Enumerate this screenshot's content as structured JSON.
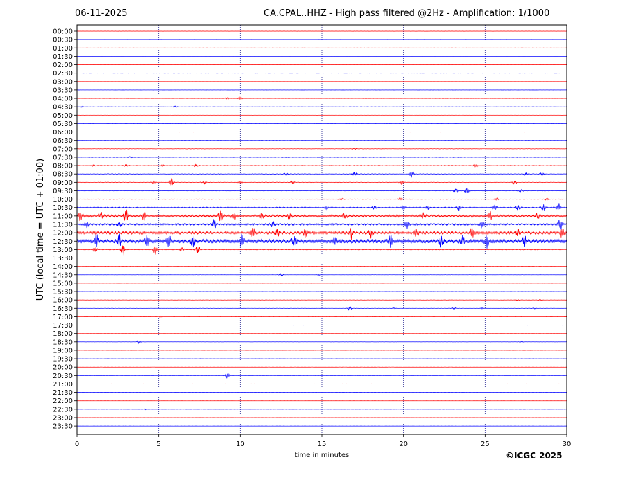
{
  "header": {
    "date": "06-11-2025",
    "title": "CA.CPAL..HHZ - High pass filtered @2Hz - Amplification: 1/1000"
  },
  "footer": {
    "copyright": "©ICGC 2025"
  },
  "chart_data": {
    "type": "line",
    "title": "CA.CPAL..HHZ - High pass filtered @2Hz - Amplification: 1/1000",
    "xlabel": "time in minutes",
    "ylabel": "UTC (local time = UTC + 01:00)",
    "xlim": [
      0,
      30
    ],
    "x_ticks": [
      0,
      5,
      10,
      15,
      20,
      25,
      30
    ],
    "grid": "vertical dotted at 5, 10, 15, 20, 25",
    "trace_colors": [
      "#ff0000",
      "#0000ff"
    ],
    "series": [
      {
        "label": "00:00",
        "amp": 0.02,
        "events": []
      },
      {
        "label": "00:30",
        "amp": 0.02,
        "events": []
      },
      {
        "label": "01:00",
        "amp": 0.02,
        "events": []
      },
      {
        "label": "01:30",
        "amp": 0.02,
        "events": []
      },
      {
        "label": "02:00",
        "amp": 0.02,
        "events": []
      },
      {
        "label": "02:30",
        "amp": 0.02,
        "events": []
      },
      {
        "label": "03:00",
        "amp": 0.02,
        "events": []
      },
      {
        "label": "03:30",
        "amp": 0.02,
        "events": []
      },
      {
        "label": "04:00",
        "amp": 0.03,
        "events": [
          [
            9.2,
            0.2
          ],
          [
            10.0,
            0.3
          ]
        ]
      },
      {
        "label": "04:30",
        "amp": 0.03,
        "events": [
          [
            0.3,
            0.15
          ],
          [
            6.0,
            0.15
          ]
        ]
      },
      {
        "label": "05:00",
        "amp": 0.02,
        "events": []
      },
      {
        "label": "05:30",
        "amp": 0.02,
        "events": []
      },
      {
        "label": "06:00",
        "amp": 0.02,
        "events": []
      },
      {
        "label": "06:30",
        "amp": 0.03,
        "events": []
      },
      {
        "label": "07:00",
        "amp": 0.04,
        "events": [
          [
            17.0,
            0.15
          ]
        ]
      },
      {
        "label": "07:30",
        "amp": 0.05,
        "events": [
          [
            3.3,
            0.2
          ]
        ]
      },
      {
        "label": "08:00",
        "amp": 0.06,
        "events": [
          [
            1.0,
            0.15
          ],
          [
            3.0,
            0.2
          ],
          [
            5.2,
            0.2
          ],
          [
            7.3,
            0.3
          ],
          [
            24.4,
            0.5
          ]
        ]
      },
      {
        "label": "08:30",
        "amp": 0.06,
        "events": [
          [
            12.8,
            0.3
          ],
          [
            17.0,
            0.8
          ],
          [
            20.5,
            0.9
          ],
          [
            27.5,
            0.3
          ],
          [
            28.5,
            0.3
          ]
        ]
      },
      {
        "label": "09:00",
        "amp": 0.06,
        "events": [
          [
            4.7,
            0.3
          ],
          [
            5.8,
            0.9
          ],
          [
            7.8,
            0.3
          ],
          [
            10.0,
            0.2
          ],
          [
            13.2,
            0.3
          ],
          [
            19.9,
            0.5
          ],
          [
            26.8,
            0.5
          ]
        ]
      },
      {
        "label": "09:30",
        "amp": 0.05,
        "events": [
          [
            23.2,
            0.7
          ],
          [
            23.9,
            0.9
          ],
          [
            27.2,
            0.3
          ]
        ]
      },
      {
        "label": "10:00",
        "amp": 0.06,
        "events": [
          [
            16.2,
            0.2
          ],
          [
            19.8,
            0.3
          ],
          [
            25.7,
            0.3
          ],
          [
            28.8,
            0.3
          ]
        ]
      },
      {
        "label": "10:30",
        "amp": 0.12,
        "events": [
          [
            15.3,
            0.3
          ],
          [
            18.2,
            0.4
          ],
          [
            20.0,
            0.5
          ],
          [
            21.5,
            0.4
          ],
          [
            23.4,
            0.7
          ],
          [
            25.6,
            0.6
          ],
          [
            27.0,
            0.8
          ],
          [
            28.6,
            1.0
          ],
          [
            29.5,
            1.0
          ]
        ]
      },
      {
        "label": "11:00",
        "amp": 0.25,
        "events": [
          [
            0.2,
            1.0
          ],
          [
            1.5,
            0.8
          ],
          [
            3.0,
            1.6
          ],
          [
            4.1,
            0.9
          ],
          [
            8.8,
            1.7
          ],
          [
            9.6,
            0.9
          ],
          [
            11.3,
            0.7
          ],
          [
            13.0,
            0.6
          ],
          [
            16.4,
            0.8
          ],
          [
            21.2,
            0.6
          ],
          [
            25.3,
            0.9
          ],
          [
            28.2,
            0.6
          ]
        ]
      },
      {
        "label": "11:30",
        "amp": 0.2,
        "events": [
          [
            0.6,
            0.6
          ],
          [
            2.6,
            0.8
          ],
          [
            8.4,
            1.2
          ],
          [
            12.0,
            0.7
          ],
          [
            20.2,
            0.8
          ],
          [
            24.8,
            0.9
          ],
          [
            29.6,
            1.3
          ]
        ]
      },
      {
        "label": "12:00",
        "amp": 0.3,
        "events": [
          [
            10.8,
            1.1
          ],
          [
            12.3,
            0.9
          ],
          [
            14.0,
            1.0
          ],
          [
            16.8,
            1.4
          ],
          [
            18.0,
            1.0
          ],
          [
            20.8,
            0.8
          ],
          [
            24.2,
            1.0
          ],
          [
            27.0,
            1.0
          ],
          [
            29.7,
            1.0
          ]
        ]
      },
      {
        "label": "12:30",
        "amp": 0.45,
        "events": [
          [
            1.2,
            1.4
          ],
          [
            2.6,
            1.3
          ],
          [
            4.3,
            1.2
          ],
          [
            5.6,
            1.5
          ],
          [
            7.1,
            1.3
          ],
          [
            10.1,
            1.3
          ],
          [
            13.3,
            1.2
          ],
          [
            15.8,
            1.0
          ],
          [
            19.2,
            1.2
          ],
          [
            22.3,
            1.2
          ],
          [
            23.6,
            1.2
          ],
          [
            25.1,
            1.2
          ],
          [
            27.4,
            1.2
          ]
        ]
      },
      {
        "label": "13:00",
        "amp": 0.08,
        "events": [
          [
            1.1,
            0.6
          ],
          [
            2.8,
            1.5
          ],
          [
            4.8,
            1.1
          ],
          [
            6.4,
            0.6
          ],
          [
            7.4,
            1.0
          ]
        ]
      },
      {
        "label": "13:30",
        "amp": 0.02,
        "events": []
      },
      {
        "label": "14:00",
        "amp": 0.02,
        "events": []
      },
      {
        "label": "14:30",
        "amp": 0.02,
        "events": [
          [
            12.5,
            0.3
          ],
          [
            14.8,
            0.15
          ]
        ]
      },
      {
        "label": "15:00",
        "amp": 0.02,
        "events": []
      },
      {
        "label": "15:30",
        "amp": 0.02,
        "events": []
      },
      {
        "label": "16:00",
        "amp": 0.03,
        "events": [
          [
            27.0,
            0.15
          ],
          [
            28.4,
            0.15
          ]
        ]
      },
      {
        "label": "16:30",
        "amp": 0.03,
        "events": [
          [
            16.7,
            0.5
          ],
          [
            19.4,
            0.15
          ],
          [
            23.1,
            0.2
          ],
          [
            24.8,
            0.2
          ],
          [
            28.0,
            0.15
          ]
        ]
      },
      {
        "label": "17:00",
        "amp": 0.02,
        "events": [
          [
            5.1,
            0.15
          ]
        ]
      },
      {
        "label": "17:30",
        "amp": 0.02,
        "events": []
      },
      {
        "label": "18:00",
        "amp": 0.02,
        "events": []
      },
      {
        "label": "18:30",
        "amp": 0.02,
        "events": [
          [
            3.8,
            0.35
          ],
          [
            27.2,
            0.15
          ]
        ]
      },
      {
        "label": "19:00",
        "amp": 0.02,
        "events": []
      },
      {
        "label": "19:30",
        "amp": 0.02,
        "events": []
      },
      {
        "label": "20:00",
        "amp": 0.02,
        "events": []
      },
      {
        "label": "20:30",
        "amp": 0.02,
        "events": [
          [
            9.2,
            0.7
          ]
        ]
      },
      {
        "label": "21:00",
        "amp": 0.02,
        "events": []
      },
      {
        "label": "21:30",
        "amp": 0.02,
        "events": []
      },
      {
        "label": "22:00",
        "amp": 0.02,
        "events": []
      },
      {
        "label": "22:30",
        "amp": 0.02,
        "events": [
          [
            4.2,
            0.15
          ]
        ]
      },
      {
        "label": "23:00",
        "amp": 0.02,
        "events": []
      },
      {
        "label": "23:30",
        "amp": 0.02,
        "events": []
      }
    ]
  }
}
